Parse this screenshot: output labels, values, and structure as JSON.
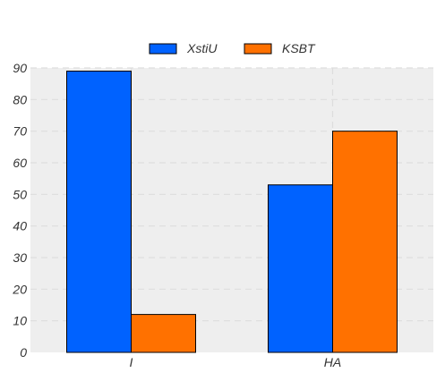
{
  "chart_data": {
    "type": "bar",
    "categories": [
      "I",
      "HA"
    ],
    "series": [
      {
        "name": "XstiU",
        "values": [
          89,
          53
        ],
        "color": "#0062ff"
      },
      {
        "name": "KSBT",
        "values": [
          12,
          70
        ],
        "color": "#ff7100"
      }
    ],
    "ylim": [
      0,
      90
    ],
    "yticks": [
      0,
      10,
      20,
      30,
      40,
      50,
      60,
      70,
      80,
      90
    ],
    "grid": true,
    "legend_position": "top-center",
    "plot_background": "#eeeeee",
    "grid_color": "#dddddd"
  }
}
